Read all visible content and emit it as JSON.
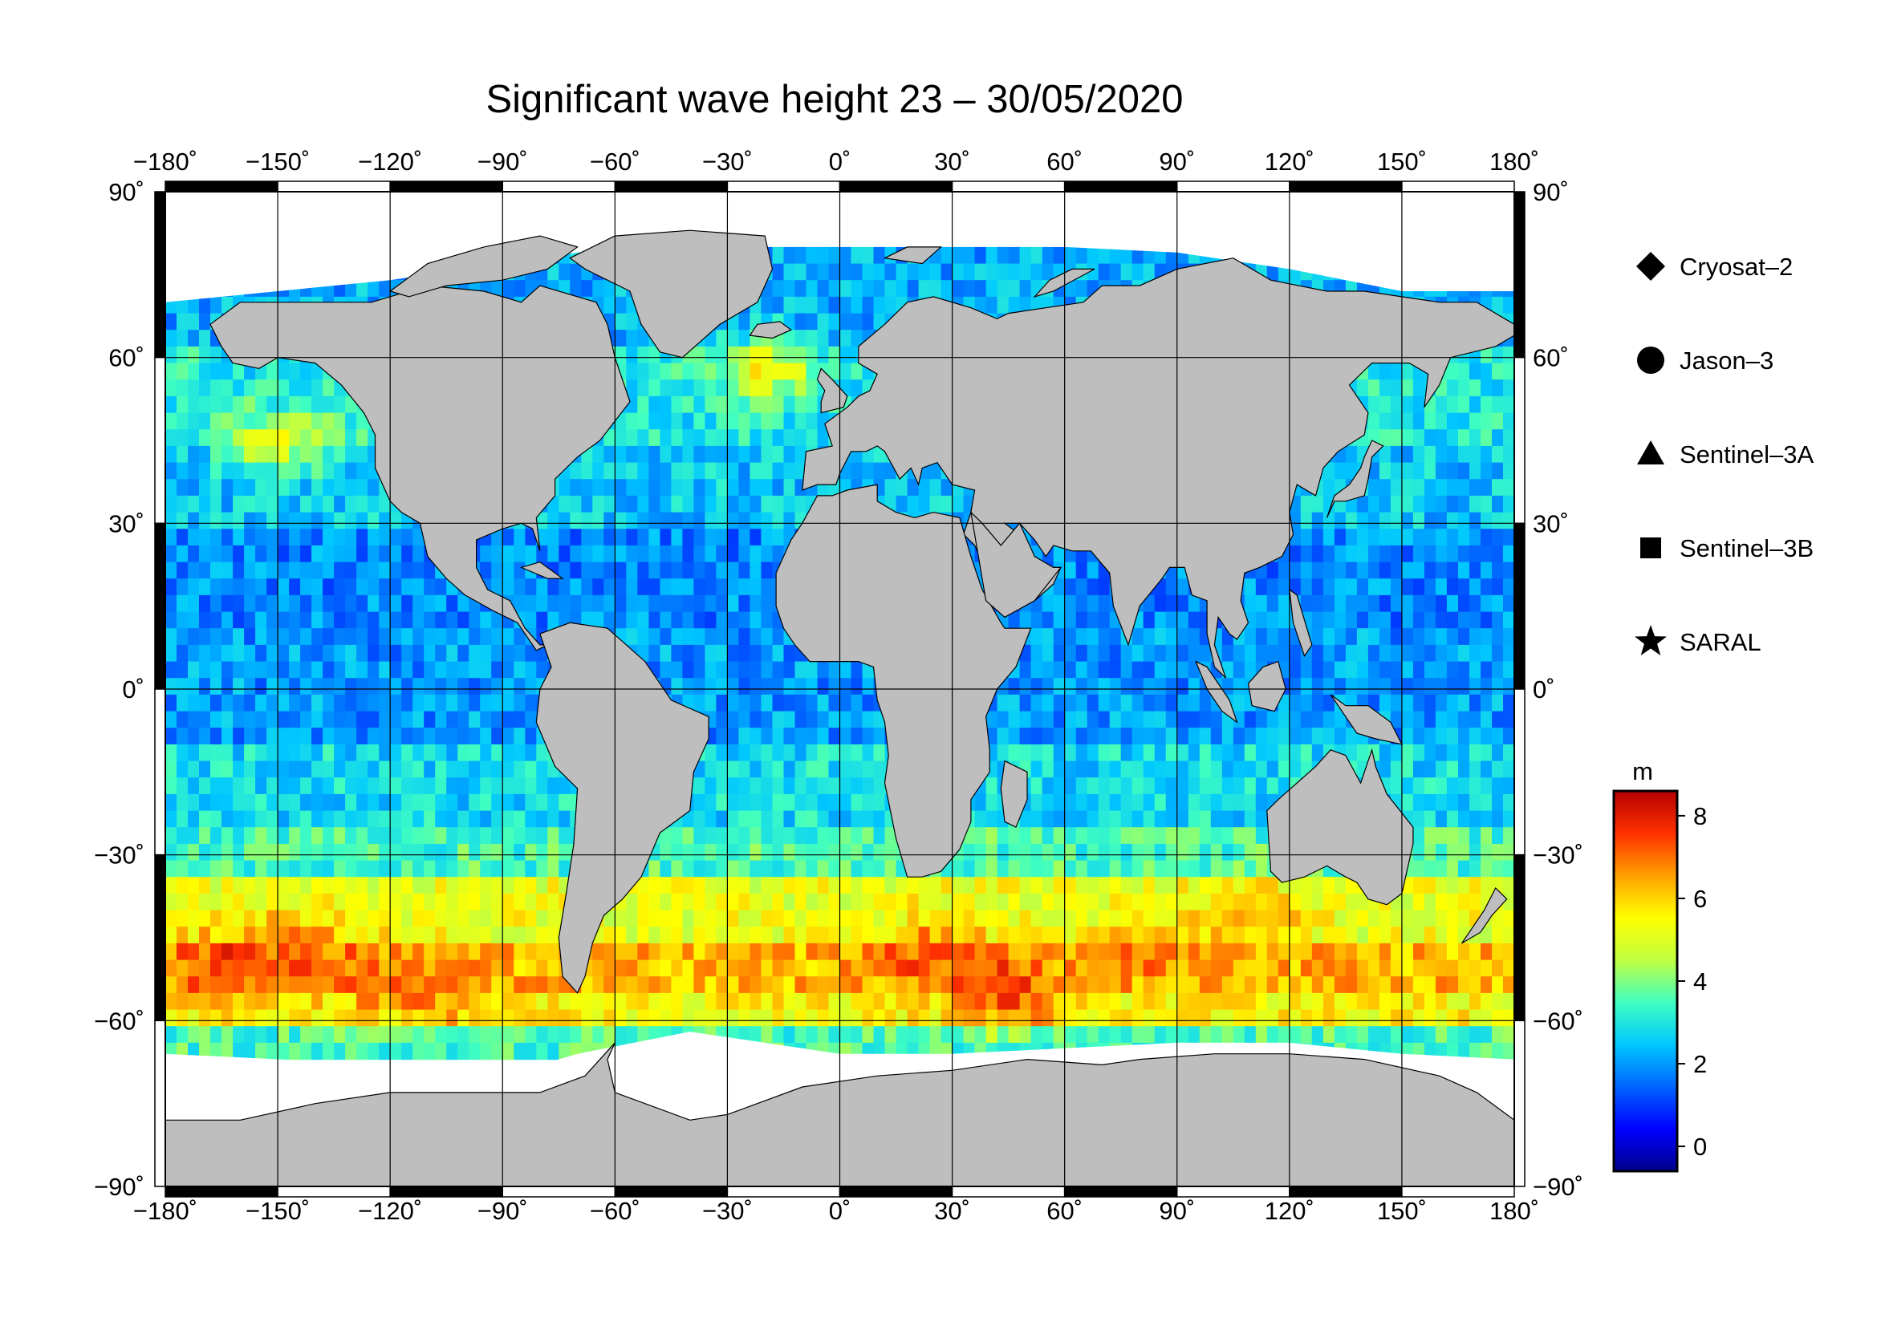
{
  "title": "Significant wave height 23 – 30/05/2020",
  "map": {
    "projection": "equirectangular",
    "lon_range": [
      -180,
      180
    ],
    "lat_range": [
      -90,
      90
    ],
    "grid_spacing_deg": 30,
    "land_color": "#bebebe",
    "ice_color": "#ffffff",
    "grid_color": "#000000",
    "lon_ticks": [
      {
        "value": -180,
        "label": "−180˚"
      },
      {
        "value": -150,
        "label": "−150˚"
      },
      {
        "value": -120,
        "label": "−120˚"
      },
      {
        "value": -90,
        "label": "−90˚"
      },
      {
        "value": -60,
        "label": "−60˚"
      },
      {
        "value": -30,
        "label": "−30˚"
      },
      {
        "value": 0,
        "label": "0˚"
      },
      {
        "value": 30,
        "label": "30˚"
      },
      {
        "value": 60,
        "label": "60˚"
      },
      {
        "value": 90,
        "label": "90˚"
      },
      {
        "value": 120,
        "label": "120˚"
      },
      {
        "value": 150,
        "label": "150˚"
      },
      {
        "value": 180,
        "label": "180˚"
      }
    ],
    "lat_ticks": [
      {
        "value": 90,
        "label_left": "90˚",
        "label_right": "90˚"
      },
      {
        "value": 60,
        "label_left": "60˚",
        "label_right": "60˚"
      },
      {
        "value": 30,
        "label_left": "30˚",
        "label_right": "30˚"
      },
      {
        "value": 0,
        "label_left": "0˚",
        "label_right": "0˚"
      },
      {
        "value": -30,
        "label_left": "−30˚",
        "label_right": "−30˚"
      },
      {
        "value": -60,
        "label_left": "−60˚",
        "label_right": "−60˚"
      },
      {
        "value": -90,
        "label_left": "−90˚",
        "label_right": "−90˚"
      }
    ]
  },
  "legend": {
    "items": [
      {
        "symbol": "diamond",
        "label": "Cryosat–2"
      },
      {
        "symbol": "circle",
        "label": "Jason–3"
      },
      {
        "symbol": "triangle",
        "label": "Sentinel–3A"
      },
      {
        "symbol": "square",
        "label": "Sentinel–3B"
      },
      {
        "symbol": "star",
        "label": "SARAL"
      }
    ]
  },
  "colorbar": {
    "unit": "m",
    "min": -0.6,
    "max": 8.6,
    "ticks": [
      {
        "value": 0,
        "label": "0"
      },
      {
        "value": 2,
        "label": "2"
      },
      {
        "value": 4,
        "label": "4"
      },
      {
        "value": 6,
        "label": "6"
      },
      {
        "value": 8,
        "label": "8"
      }
    ],
    "colormap": [
      "#00008c",
      "#0000ff",
      "#0064ff",
      "#00c8ff",
      "#40ffc0",
      "#c0ff40",
      "#ffff00",
      "#ffa000",
      "#ff3000",
      "#b40000"
    ]
  },
  "chart_data": {
    "type": "heatmap",
    "variable": "Significant wave height",
    "unit": "m",
    "value_range": [
      0,
      8.6
    ],
    "lon_range": [
      -180,
      180
    ],
    "lat_range": [
      -90,
      90
    ],
    "series": [
      {
        "name": "Cryosat–2",
        "symbol": "diamond"
      },
      {
        "name": "Jason–3",
        "symbol": "circle"
      },
      {
        "name": "Sentinel–3A",
        "symbol": "triangle"
      },
      {
        "name": "Sentinel–3B",
        "symbol": "square"
      },
      {
        "name": "SARAL",
        "symbol": "star"
      }
    ],
    "zonal_bands": [
      {
        "lat_min": 62,
        "lat_max": 80,
        "hs_m": 2.2
      },
      {
        "lat_min": 45,
        "lat_max": 62,
        "hs_m": 3.0
      },
      {
        "lat_min": 30,
        "lat_max": 45,
        "hs_m": 2.5
      },
      {
        "lat_min": 10,
        "lat_max": 30,
        "hs_m": 1.8
      },
      {
        "lat_min": -10,
        "lat_max": 10,
        "hs_m": 2.0
      },
      {
        "lat_min": -25,
        "lat_max": -10,
        "hs_m": 2.8
      },
      {
        "lat_min": -35,
        "lat_max": -25,
        "hs_m": 3.5
      },
      {
        "lat_min": -45,
        "lat_max": -35,
        "hs_m": 5.2
      },
      {
        "lat_min": -55,
        "lat_max": -45,
        "hs_m": 6.3
      },
      {
        "lat_min": -62,
        "lat_max": -55,
        "hs_m": 5.5
      },
      {
        "lat_min": -67,
        "lat_max": -62,
        "hs_m": 3.5
      }
    ],
    "hotspots": [
      {
        "lon": -165,
        "lat": -50,
        "hs_m": 7.8
      },
      {
        "lon": -145,
        "lat": -47,
        "hs_m": 7.2
      },
      {
        "lon": -125,
        "lat": -52,
        "hs_m": 7.0
      },
      {
        "lon": -105,
        "lat": -55,
        "hs_m": 6.8
      },
      {
        "lon": 25,
        "lat": -48,
        "hs_m": 7.6
      },
      {
        "lon": 45,
        "lat": -55,
        "hs_m": 7.8
      },
      {
        "lon": 80,
        "lat": -47,
        "hs_m": 7.0
      },
      {
        "lon": 110,
        "lat": -42,
        "hs_m": 6.5
      },
      {
        "lon": -20,
        "lat": 58,
        "hs_m": 6.0
      },
      {
        "lon": -150,
        "lat": 45,
        "hs_m": 5.5
      }
    ]
  }
}
